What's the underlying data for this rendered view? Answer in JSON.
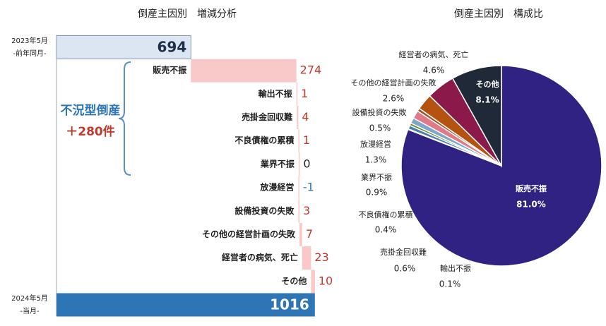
{
  "chart_data": [
    {
      "type": "waterfall",
      "title": "倒産主因別　増減分析",
      "start_label": "2023年5月",
      "start_sublabel": "-前年同月-",
      "start_value": 694,
      "start_color": "#dce6f2",
      "end_label": "2024年5月",
      "end_sublabel": "-当月-",
      "end_value": 1016,
      "end_color": "#2e75b6",
      "categories": [
        "販売不振",
        "輸出不振",
        "売掛金回収難",
        "不良債権の累積",
        "業界不振",
        "放漫経営",
        "設備投資の失敗",
        "その他の経営計画の失敗",
        "経営者の病気、死亡",
        "その他"
      ],
      "values": [
        274,
        1,
        4,
        1,
        0,
        -1,
        3,
        7,
        23,
        10
      ],
      "color": "#f9c9c9",
      "annotations": [
        "不況型倒産",
        "＋280件"
      ],
      "xlim": [
        345,
        1020
      ]
    },
    {
      "type": "pie",
      "title": "倒産主因別　構成比",
      "categories": [
        "販売不振",
        "輸出不振",
        "売掛金回収難",
        "不良債権の累積",
        "業界不振",
        "放漫経営",
        "設備投資の失敗",
        "その他の経営計画の失敗",
        "経営者の病気、死亡",
        "その他"
      ],
      "values": [
        81.0,
        0.1,
        0.6,
        0.4,
        0.9,
        1.3,
        0.5,
        2.6,
        4.6,
        8.1
      ],
      "value_labels": [
        "81.0%",
        "0.1%",
        "0.6%",
        "0.4%",
        "0.9%",
        "1.3%",
        "0.5%",
        "2.6%",
        "4.6%",
        "8.1%"
      ],
      "colors": [
        "#2f2283",
        "#c8c8c8",
        "#4a7fb0",
        "#6b8e23",
        "#7fa7c9",
        "#e07a8a",
        "#a0522d",
        "#b4530f",
        "#8b1a4a",
        "#1f2937"
      ]
    }
  ]
}
